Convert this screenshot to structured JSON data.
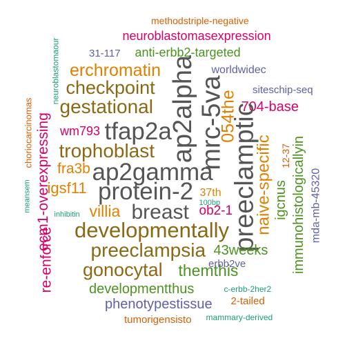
{
  "palette": {
    "dark_gray": "#555555",
    "brown": "#8b6914",
    "green": "#4d9221",
    "magenta": "#d6006b",
    "orange": "#e08000",
    "purple": "#6060a8",
    "teal": "#1b9e77",
    "red_orange": "#d95f02"
  },
  "words": [
    {
      "text": "methodstriple-negative",
      "color": "red_orange",
      "weight": 2
    },
    {
      "text": "neuroblastomasexpression",
      "color": "magenta",
      "weight": 3
    },
    {
      "text": "neuroblastomaour",
      "color": "teal",
      "weight": 1
    },
    {
      "text": "31-117",
      "color": "purple",
      "weight": 2
    },
    {
      "text": "anti-erbb2-targeted",
      "color": "green",
      "weight": 3
    },
    {
      "text": "erchromatin",
      "color": "orange",
      "weight": 4
    },
    {
      "text": "ap2alpha",
      "color": "dark_gray",
      "weight": 6
    },
    {
      "text": "worldwidec",
      "color": "purple",
      "weight": 2
    },
    {
      "text": "checkpoint",
      "color": "brown",
      "weight": 5
    },
    {
      "text": "mrc-5va",
      "color": "dark_gray",
      "weight": 6
    },
    {
      "text": "054the",
      "color": "orange",
      "weight": 4
    },
    {
      "text": "siteschip-seq",
      "color": "purple",
      "weight": 2
    },
    {
      "text": "choriocarcinomas",
      "color": "red_orange",
      "weight": 1
    },
    {
      "text": "gestational",
      "color": "brown",
      "weight": 5
    },
    {
      "text": "704-base",
      "color": "magenta",
      "weight": 3
    },
    {
      "text": "preeclamptic",
      "color": "dark_gray",
      "weight": 6
    },
    {
      "text": "wm793",
      "color": "magenta",
      "weight": 3
    },
    {
      "text": "tfap2a",
      "color": "dark_gray",
      "weight": 6
    },
    {
      "text": "ecm1-overexpressing",
      "color": "magenta",
      "weight": 3
    },
    {
      "text": "trophoblast",
      "color": "brown",
      "weight": 5
    },
    {
      "text": "12-37",
      "color": "red_orange",
      "weight": 1
    },
    {
      "text": "immunohistologicallyin",
      "color": "green",
      "weight": 3
    },
    {
      "text": "naive-specific",
      "color": "orange",
      "weight": 4
    },
    {
      "text": "meansem",
      "color": "teal",
      "weight": 1
    },
    {
      "text": "fra3b",
      "color": "orange",
      "weight": 4
    },
    {
      "text": "ap2gamma",
      "color": "dark_gray",
      "weight": 6
    },
    {
      "text": "mda-mb-45320",
      "color": "purple",
      "weight": 2
    },
    {
      "text": "igcnus",
      "color": "green",
      "weight": 3
    },
    {
      "text": "igsf11",
      "color": "orange",
      "weight": 4
    },
    {
      "text": "protein-2",
      "color": "dark_gray",
      "weight": 6
    },
    {
      "text": "37th",
      "color": "orange",
      "weight": 2
    },
    {
      "text": "100bp",
      "color": "teal",
      "weight": 1
    },
    {
      "text": "inhibitin",
      "color": "teal",
      "weight": 1
    },
    {
      "text": "villia",
      "color": "orange",
      "weight": 4
    },
    {
      "text": "breast",
      "color": "dark_gray",
      "weight": 6
    },
    {
      "text": "ob2-1",
      "color": "magenta",
      "weight": 3
    },
    {
      "text": "re-enforce",
      "color": "magenta",
      "weight": 3
    },
    {
      "text": "developmentally",
      "color": "brown",
      "weight": 5
    },
    {
      "text": "preeclampsia",
      "color": "brown",
      "weight": 5
    },
    {
      "text": "43weeks",
      "color": "green",
      "weight": 3
    },
    {
      "text": "gonocytal",
      "color": "brown",
      "weight": 5
    },
    {
      "text": "themthis",
      "color": "green",
      "weight": 4
    },
    {
      "text": "erbb2ve",
      "color": "purple",
      "weight": 2
    },
    {
      "text": "developmentthus",
      "color": "green",
      "weight": 3
    },
    {
      "text": "c-erbb-2her2",
      "color": "teal",
      "weight": 1
    },
    {
      "text": "2-tailed",
      "color": "red_orange",
      "weight": 2
    },
    {
      "text": "phenotypestissue",
      "color": "purple",
      "weight": 3
    },
    {
      "text": "tumorigensisto",
      "color": "red_orange",
      "weight": 2
    },
    {
      "text": "mammary-derived",
      "color": "teal",
      "weight": 1
    }
  ]
}
